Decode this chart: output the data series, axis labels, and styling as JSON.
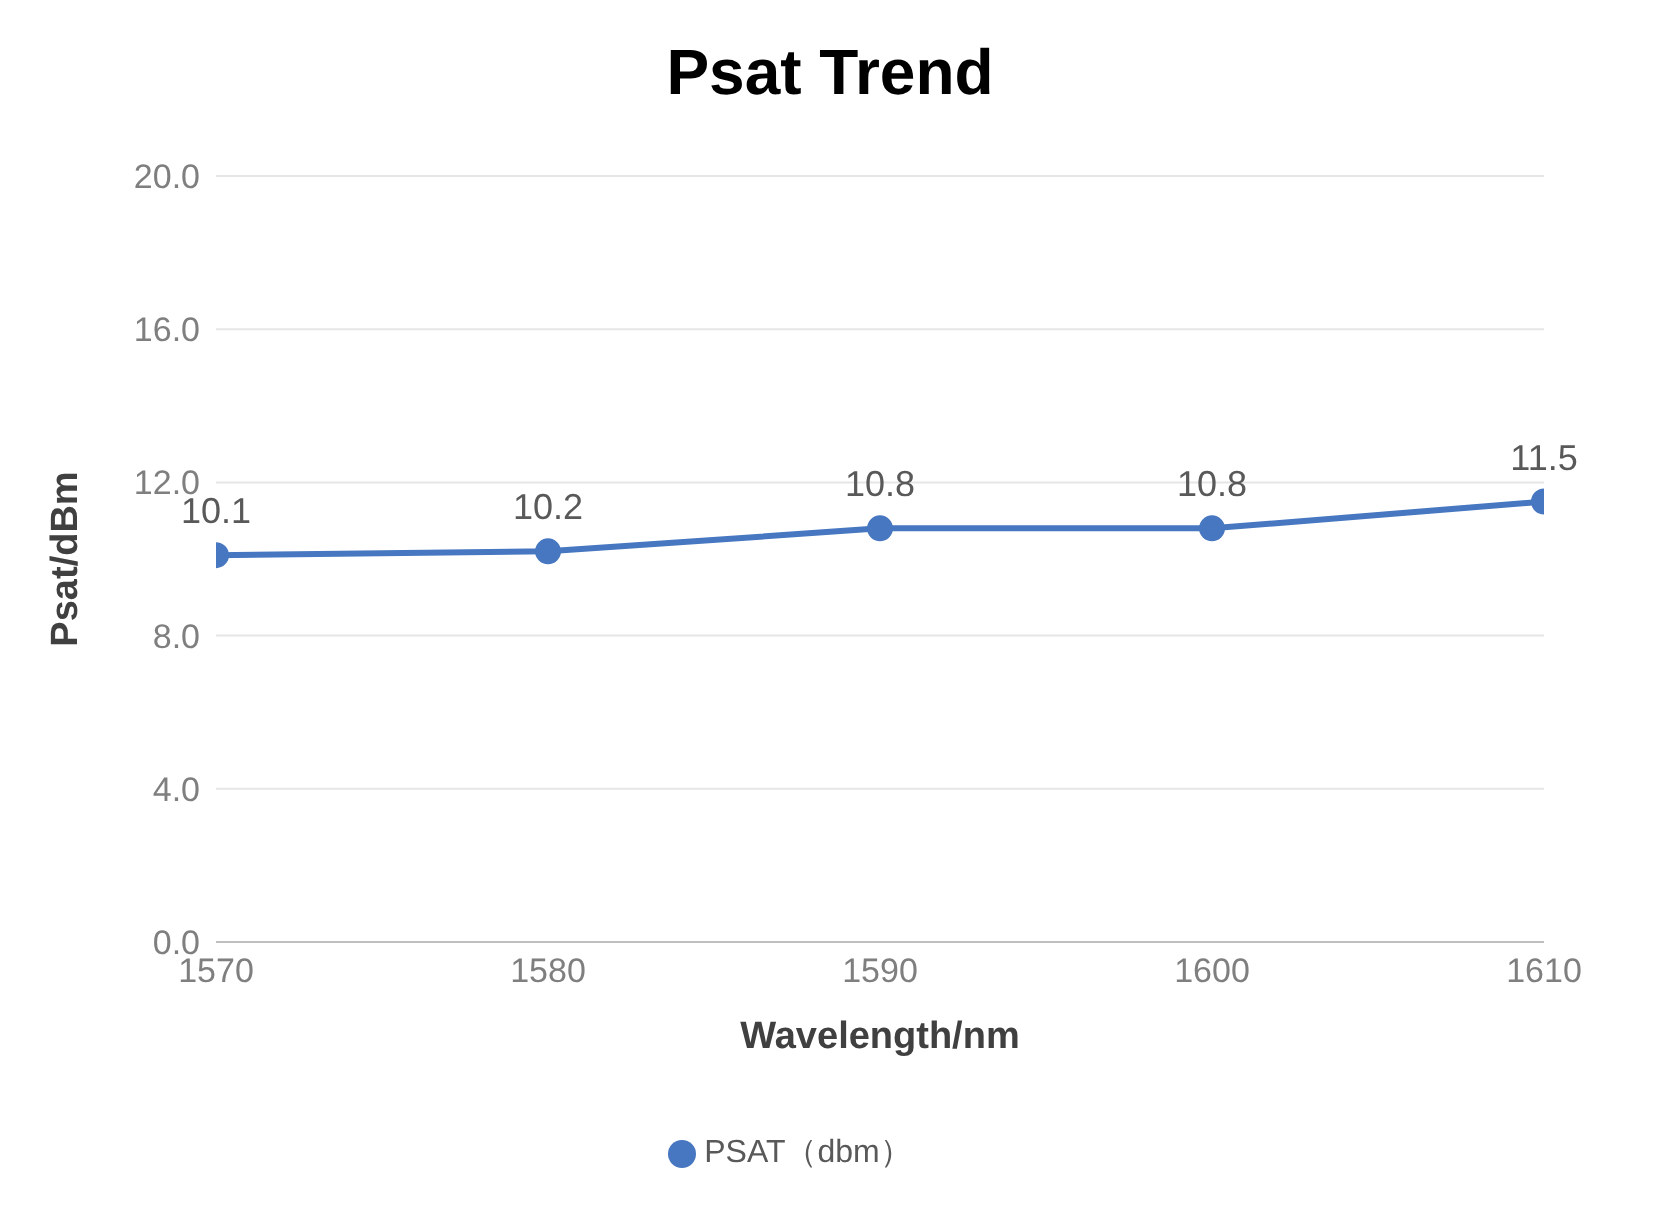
{
  "chart_data": {
    "type": "line",
    "title": "Psat Trend",
    "xlabel": "Wavelength/nm",
    "ylabel": "Psat/dBm",
    "x": [
      1570,
      1580,
      1590,
      1600,
      1610
    ],
    "series": [
      {
        "name": "PSAT（dbm）",
        "color": "#4677c0",
        "values": [
          10.1,
          10.2,
          10.8,
          10.8,
          11.5
        ]
      }
    ],
    "xlim": [
      1570,
      1610
    ],
    "xticks": [
      1570,
      1580,
      1590,
      1600,
      1610
    ],
    "ylim": [
      0,
      20
    ],
    "yticks": [
      {
        "value": 0,
        "label": "0.0"
      },
      {
        "value": 4,
        "label": "4.0"
      },
      {
        "value": 8,
        "label": "8.0"
      },
      {
        "value": 12,
        "label": "12.0"
      },
      {
        "value": 16,
        "label": "16.0"
      },
      {
        "value": 20,
        "label": "20.0"
      }
    ],
    "grid": "y",
    "legend": "bottom",
    "marker": "circle",
    "line_style": "solid",
    "data_labels": true
  }
}
